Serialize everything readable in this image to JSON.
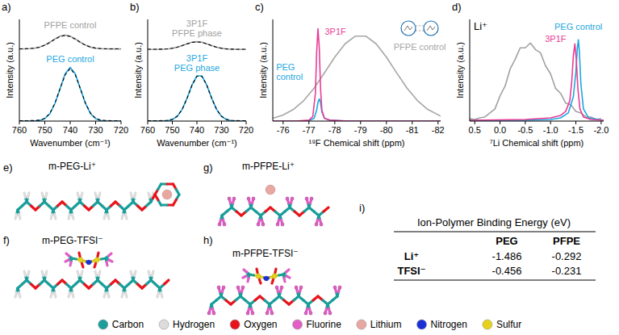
{
  "chart_data": [
    {
      "type": "line",
      "label": "a)",
      "x_label": "Wavenumber (cm⁻¹)",
      "y_label": "Intensity (a.u.)",
      "xlim": [
        760,
        720
      ],
      "xticks": [
        760,
        750,
        740,
        730,
        720
      ],
      "ylim": [
        0,
        1.1
      ],
      "yticks": [],
      "tick_labels": "x",
      "series": [
        {
          "name": "PFPE control",
          "color": "#a0a0a0",
          "x": [
            760,
            758,
            756,
            754,
            752,
            750,
            748,
            746,
            744,
            742,
            740,
            738,
            736,
            734,
            732,
            730,
            728,
            726,
            724,
            722,
            720
          ],
          "values": [
            0.78,
            0.781,
            0.783,
            0.788,
            0.8,
            0.822,
            0.853,
            0.889,
            0.918,
            0.93,
            0.918,
            0.889,
            0.853,
            0.822,
            0.8,
            0.788,
            0.783,
            0.781,
            0.78,
            0.78,
            0.78
          ]
        },
        {
          "color": "#000000",
          "line_style": "dashed",
          "x": [
            760,
            758,
            756,
            754,
            752,
            750,
            748,
            746,
            744,
            742,
            740,
            738,
            736,
            734,
            732,
            730,
            728,
            726,
            724,
            722,
            720
          ],
          "values": [
            0.782,
            0.782,
            0.784,
            0.789,
            0.8,
            0.82,
            0.85,
            0.886,
            0.915,
            0.927,
            0.915,
            0.886,
            0.85,
            0.82,
            0.8,
            0.789,
            0.784,
            0.782,
            0.782,
            0.782,
            0.782
          ]
        },
        {
          "name": "PEG control",
          "color": "#1ca7e0",
          "x": [
            760,
            758,
            756,
            754,
            752,
            750,
            748,
            746,
            744,
            742,
            740,
            738,
            736,
            734,
            732,
            730,
            728,
            726,
            724,
            722,
            720
          ],
          "values": [
            0,
            0,
            0,
            0.001,
            0.006,
            0.026,
            0.08,
            0.19,
            0.35,
            0.51,
            0.58,
            0.51,
            0.35,
            0.19,
            0.08,
            0.026,
            0.006,
            0.001,
            0,
            0,
            0
          ]
        },
        {
          "color": "#000000",
          "line_style": "dashed",
          "x": [
            760,
            758,
            756,
            754,
            752,
            750,
            748,
            746,
            744,
            742,
            740,
            738,
            736,
            734,
            732,
            730,
            728,
            726,
            724,
            722,
            720
          ],
          "values": [
            0.005,
            0.005,
            0.005,
            0.006,
            0.01,
            0.03,
            0.085,
            0.195,
            0.35,
            0.5,
            0.57,
            0.5,
            0.35,
            0.195,
            0.085,
            0.03,
            0.01,
            0.006,
            0.005,
            0.005,
            0.005
          ]
        }
      ]
    },
    {
      "type": "line",
      "label": "b)",
      "x_label": "Wavenumber (cm⁻¹)",
      "y_label": "Intensity (a.u.)",
      "xlim": [
        760,
        720
      ],
      "xticks": [
        760,
        750,
        740,
        730,
        720
      ],
      "ylim": [
        0,
        1.05
      ],
      "yticks": [],
      "tick_labels": "x",
      "series": [
        {
          "name": "3P1F PFPE phase",
          "color": "#a0a0a0",
          "x": [
            760,
            758,
            756,
            754,
            752,
            750,
            748,
            746,
            744,
            742,
            740,
            738,
            736,
            734,
            732,
            730,
            728,
            726,
            724,
            722,
            720
          ],
          "values": [
            0.74,
            0.74,
            0.74,
            0.742,
            0.744,
            0.751,
            0.762,
            0.779,
            0.798,
            0.814,
            0.82,
            0.814,
            0.798,
            0.779,
            0.762,
            0.751,
            0.744,
            0.742,
            0.74,
            0.74,
            0.74
          ]
        },
        {
          "color": "#000000",
          "line_style": "dashed",
          "x": [
            760,
            758,
            756,
            754,
            752,
            750,
            748,
            746,
            744,
            742,
            740,
            738,
            736,
            734,
            732,
            730,
            728,
            726,
            724,
            722,
            720
          ],
          "values": [
            0.742,
            0.742,
            0.742,
            0.743,
            0.746,
            0.752,
            0.763,
            0.779,
            0.797,
            0.812,
            0.818,
            0.812,
            0.797,
            0.779,
            0.763,
            0.752,
            0.746,
            0.743,
            0.742,
            0.742,
            0.742
          ]
        },
        {
          "name": "3P1F PEG phase",
          "color": "#1ca7e0",
          "x": [
            760,
            758,
            756,
            754,
            752,
            750,
            748,
            746,
            744,
            742,
            740,
            738,
            736,
            734,
            732,
            730,
            728,
            726,
            724,
            722,
            720
          ],
          "values": [
            0,
            0,
            0,
            0.001,
            0.004,
            0.015,
            0.048,
            0.12,
            0.237,
            0.372,
            0.467,
            0.467,
            0.372,
            0.237,
            0.12,
            0.048,
            0.015,
            0.004,
            0.001,
            0,
            0
          ]
        },
        {
          "color": "#000000",
          "line_style": "dashed",
          "x": [
            760,
            758,
            756,
            754,
            752,
            750,
            748,
            746,
            744,
            742,
            740,
            738,
            736,
            734,
            732,
            730,
            728,
            726,
            724,
            722,
            720
          ],
          "values": [
            0.004,
            0.004,
            0.004,
            0.005,
            0.008,
            0.018,
            0.05,
            0.12,
            0.235,
            0.37,
            0.463,
            0.463,
            0.37,
            0.235,
            0.12,
            0.05,
            0.018,
            0.008,
            0.005,
            0.004,
            0.004
          ]
        }
      ]
    },
    {
      "type": "line",
      "label": "c)",
      "x_label": "¹⁹F Chemical shift (ppm)",
      "y_label": "Intensity (a.u.)",
      "xlim": [
        -75.6,
        -82.1
      ],
      "xticks": [
        -76,
        -77,
        -78,
        -79,
        -80,
        -81,
        -82
      ],
      "ylim": [
        0,
        1.1
      ],
      "yticks": [],
      "tick_labels": "x",
      "series": [
        {
          "name": "PFPE control",
          "color": "#a6a6a6",
          "x": [
            -75.6,
            -76,
            -76.4,
            -76.8,
            -77.2,
            -77.6,
            -78,
            -78.4,
            -78.8,
            -79.2,
            -79.6,
            -80,
            -80.4,
            -80.8,
            -81.2,
            -81.6,
            -82.1
          ],
          "values": [
            0.03,
            0.065,
            0.126,
            0.222,
            0.356,
            0.521,
            0.692,
            0.836,
            0.919,
            0.919,
            0.836,
            0.692,
            0.521,
            0.356,
            0.222,
            0.126,
            0.054
          ]
        },
        {
          "name": "PEG control",
          "color": "#1ca7e0",
          "x": [
            -75.6,
            -76.5,
            -77,
            -77.2,
            -77.3,
            -77.35,
            -77.4,
            -77.45,
            -77.5,
            -77.6,
            -77.8,
            -78.5,
            -82.1
          ],
          "values": [
            0,
            0,
            0.005,
            0.03,
            0.12,
            0.2,
            0.24,
            0.2,
            0.1,
            0.03,
            0.01,
            0,
            0
          ]
        },
        {
          "name": "3P1F",
          "color": "#ea3c96",
          "x": [
            -75.6,
            -76.5,
            -77,
            -77.15,
            -77.25,
            -77.3,
            -77.35,
            -77.4,
            -77.45,
            -77.5,
            -77.6,
            -77.8,
            -78.5,
            -82.1
          ],
          "values": [
            0,
            0,
            0.01,
            0.05,
            0.3,
            0.75,
            1,
            0.8,
            0.35,
            0.12,
            0.03,
            0.01,
            0,
            0
          ]
        }
      ]
    },
    {
      "type": "line",
      "label": "d)",
      "annotation": "Li⁺",
      "x_label": "⁷Li Chemical shift (ppm)",
      "y_label": "Intensity (a.u.)",
      "xlim": [
        0.6,
        -2.05
      ],
      "xticks": [
        0.5,
        {
          "value": 0,
          "label": "0.0"
        },
        -0.5,
        {
          "value": -1,
          "label": "-1.0"
        },
        -1.5,
        {
          "value": -2,
          "label": "-2.0"
        }
      ],
      "ylim": [
        0,
        1.25
      ],
      "yticks": [],
      "tick_labels": "x",
      "series": [
        {
          "color": "#a0a0a0",
          "x": [
            0.6,
            0.5,
            0.4,
            0.3,
            0.2,
            0.1,
            0,
            -0.1,
            -0.2,
            -0.3,
            -0.4,
            -0.5,
            -0.6,
            -0.7,
            -0.8,
            -0.9,
            -1,
            -1.1,
            -1.2,
            -1.3,
            -1.4,
            -1.5,
            -1.6,
            -1.7,
            -1.8,
            -1.9,
            -2
          ],
          "values": [
            0.03,
            0.02,
            0.04,
            0.05,
            0.1,
            0.15,
            0.31,
            0.43,
            0.64,
            0.76,
            0.9,
            0.9,
            0.96,
            0.88,
            0.84,
            0.68,
            0.58,
            0.4,
            0.34,
            0.22,
            0.2,
            0.12,
            0.1,
            0.05,
            0.05,
            0.02,
            0.03
          ]
        },
        {
          "name": "PEG control",
          "color": "#1ca7e0",
          "x": [
            0.6,
            -0.5,
            -1,
            -1.2,
            -1.35,
            -1.45,
            -1.5,
            -1.53,
            -1.55,
            -1.57,
            -1.6,
            -1.65,
            -1.75,
            -2.05
          ],
          "values": [
            0.01,
            0.01,
            0.02,
            0.04,
            0.1,
            0.3,
            0.6,
            0.9,
            1,
            0.85,
            0.45,
            0.15,
            0.04,
            0.01
          ]
        },
        {
          "name": "3P1F",
          "color": "#ea3c96",
          "x": [
            0.6,
            -0.5,
            -1,
            -1.2,
            -1.3,
            -1.38,
            -1.42,
            -1.45,
            -1.48,
            -1.51,
            -1.54,
            -1.58,
            -1.65,
            -1.8,
            -2.05
          ],
          "values": [
            0.01,
            0.02,
            0.04,
            0.07,
            0.12,
            0.25,
            0.5,
            0.8,
            0.95,
            0.75,
            0.4,
            0.15,
            0.05,
            0.02,
            0.01
          ]
        }
      ]
    }
  ],
  "molecules": [
    {
      "label": "e)",
      "name": "m-PEG-Li⁺"
    },
    {
      "label": "f)",
      "name": "m-PEG-TFSI⁻"
    },
    {
      "label": "g)",
      "name": "m-PFPE-Li⁺"
    },
    {
      "label": "h)",
      "name": "m-PFPE-TFSI⁻"
    }
  ],
  "binding_table": {
    "label": "i)",
    "title": "Ion-Polymer Binding Energy (eV)",
    "columns": [
      "PEG",
      "PFPE"
    ],
    "rows": [
      {
        "ion": "Li⁺",
        "values": [
          -1.486,
          -0.292
        ]
      },
      {
        "ion": "TFSI⁻",
        "values": [
          -0.456,
          -0.231
        ]
      }
    ]
  },
  "atom_legend": [
    {
      "name": "Carbon",
      "color": "#1b9e9a"
    },
    {
      "name": "Hydrogen",
      "color": "#dcdcdc"
    },
    {
      "name": "Oxygen",
      "color": "#e8141c"
    },
    {
      "name": "Fluorine",
      "color": "#e15fc5"
    },
    {
      "name": "Lithium",
      "color": "#e9a7a2"
    },
    {
      "name": "Nitrogen",
      "color": "#1a2fd6"
    },
    {
      "name": "Sulfur",
      "color": "#e6d21a"
    }
  ]
}
